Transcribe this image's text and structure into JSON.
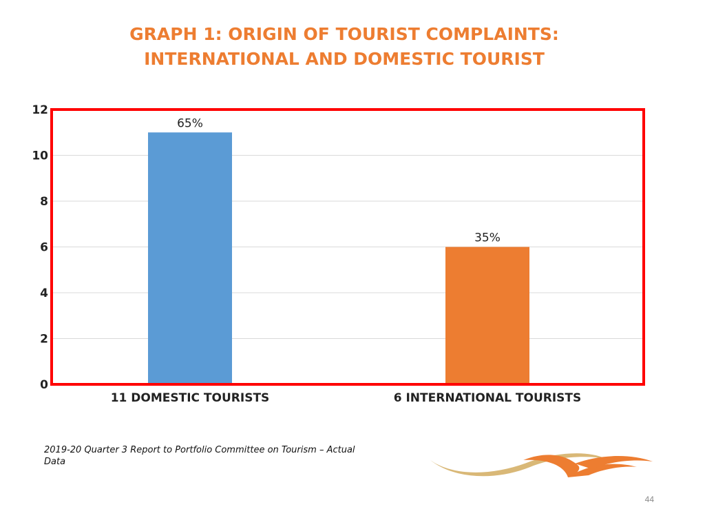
{
  "slide": {
    "title_line1": "GRAPH 1: ORIGIN OF TOURIST COMPLAINTS:",
    "title_line2": "INTERNATIONAL AND DOMESTIC TOURIST",
    "source_note": "2019-20 Quarter 3 Report to Portfolio Committee on Tourism  – Actual Data",
    "page_number": "44"
  },
  "colors": {
    "title": "#ED7D31",
    "domestic_bar": "#5B9BD5",
    "international_bar": "#ED7D31",
    "plot_border": "#FF0000",
    "gridline": "#D9D9D9"
  },
  "chart_data": {
    "type": "bar",
    "categories": [
      "11 DOMESTIC TOURISTS",
      "6 INTERNATIONAL TOURISTS"
    ],
    "values": [
      11,
      6
    ],
    "data_labels": [
      "65%",
      "35%"
    ],
    "bar_colors": [
      "#5B9BD5",
      "#ED7D31"
    ],
    "yticks": [
      "0",
      "2",
      "4",
      "6",
      "8",
      "10",
      "12"
    ],
    "ylim": [
      0,
      12
    ],
    "grid": true,
    "legend": "none"
  }
}
